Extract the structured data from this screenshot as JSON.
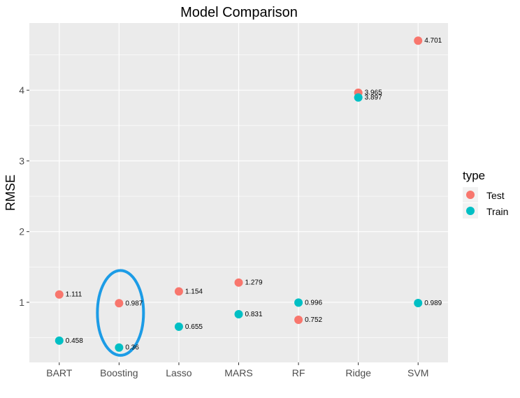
{
  "chart_data": {
    "type": "scatter",
    "title": "Model Comparison",
    "xlabel": "",
    "ylabel": "RMSE",
    "categories": [
      "BART",
      "Boosting",
      "Lasso",
      "MARS",
      "RF",
      "Ridge",
      "SVM"
    ],
    "ylim": [
      0.15,
      4.95
    ],
    "yticks": [
      1,
      2,
      3,
      4
    ],
    "grid": true,
    "legend": {
      "title": "type",
      "placement": "right",
      "entries": [
        {
          "label": "Test",
          "color": "#F8766D"
        },
        {
          "label": "Train",
          "color": "#00BFC4"
        }
      ]
    },
    "series": [
      {
        "name": "Test",
        "color": "#F8766D",
        "values": [
          1.111,
          0.987,
          1.154,
          1.279,
          0.752,
          3.965,
          4.701
        ],
        "labels": [
          "1.111",
          "0.987",
          "1.154",
          "1.279",
          "0.752",
          "3.965",
          "4.701"
        ]
      },
      {
        "name": "Train",
        "color": "#00BFC4",
        "values": [
          0.458,
          0.36,
          0.655,
          0.831,
          0.996,
          3.897,
          0.989
        ],
        "labels": [
          "0.458",
          "0.36",
          "0.655",
          "0.831",
          "0.996",
          "3.897",
          "0.989"
        ]
      }
    ],
    "annotations": [
      {
        "shape": "ellipse",
        "category": "Boosting",
        "y_range": [
          0.25,
          1.45
        ],
        "color": "#1C9CE6"
      }
    ],
    "colors": {
      "panel": "#EBEBEB",
      "grid": "#FFFFFF",
      "annotation": "#1C9CE6"
    }
  }
}
